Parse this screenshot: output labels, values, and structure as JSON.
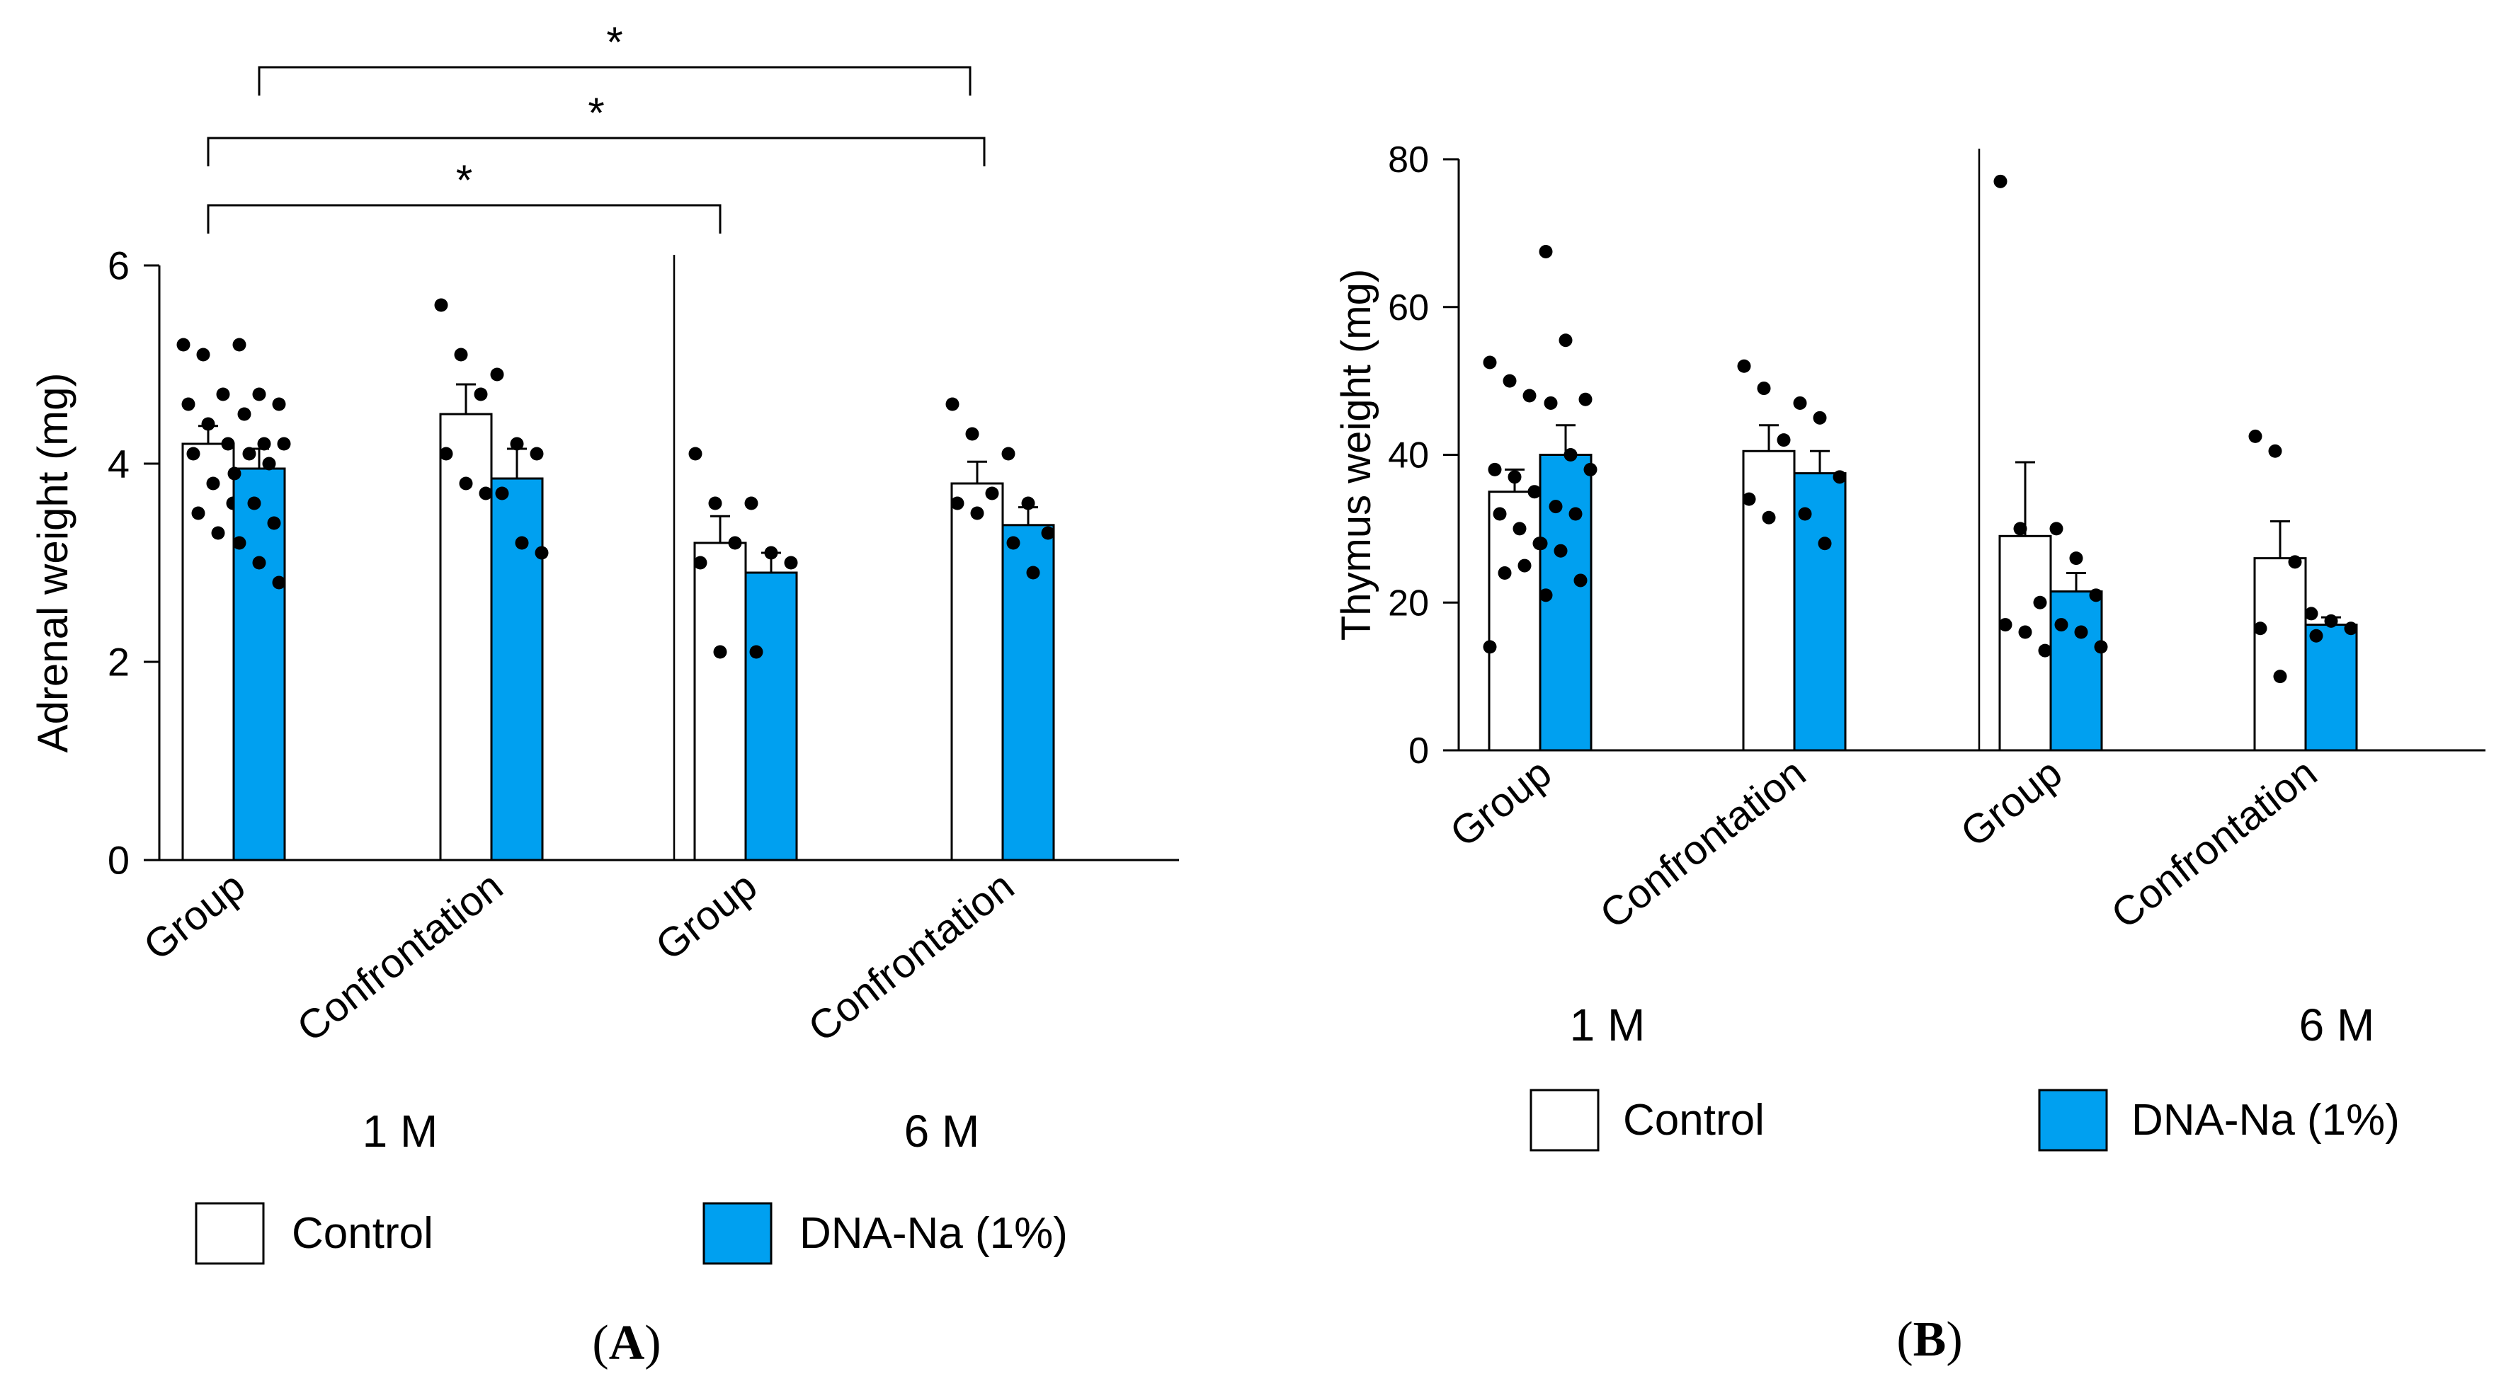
{
  "colors": {
    "control": "#ffffff",
    "dna": "#00a0f0",
    "ink": "#000000"
  },
  "chart_data": [
    {
      "id": "A",
      "type": "bar",
      "panel_label": "A",
      "ylabel": "Adrenal weight (mg)",
      "ylim": [
        0,
        6
      ],
      "yticks": [
        "0",
        "2",
        "4",
        "6"
      ],
      "categories": [
        "Group",
        "Confrontation",
        "Group",
        "Confrontation"
      ],
      "age_labels": [
        "1 M",
        "6 M"
      ],
      "legend": [
        "Control",
        "DNA-Na (1%)"
      ],
      "series": [
        {
          "name": "Control",
          "values": [
            4.2,
            4.5,
            3.2,
            3.8
          ],
          "errors": [
            0.18,
            0.3,
            0.27,
            0.22
          ]
        },
        {
          "name": "DNA-Na (1%)",
          "values": [
            3.95,
            3.85,
            2.9,
            3.38
          ],
          "errors": [
            0.2,
            0.3,
            0.2,
            0.18
          ]
        }
      ],
      "points": [
        [
          [
            5.2,
            5.1,
            4.7,
            4.6,
            4.4,
            4.2,
            4.1,
            3.8,
            3.6,
            3.5,
            3.3
          ],
          [
            5.2,
            4.7,
            4.6,
            4.5,
            4.2,
            4.2,
            4.1,
            4.0,
            3.9,
            3.6,
            3.4,
            3.2,
            3.0,
            2.8
          ]
        ],
        [
          [
            5.6,
            5.1,
            4.7,
            4.1,
            3.8,
            3.7
          ],
          [
            4.9,
            4.2,
            4.1,
            3.7,
            3.2,
            3.1
          ]
        ],
        [
          [
            4.1,
            3.6,
            3.2,
            3.0,
            2.1
          ],
          [
            3.6,
            3.1,
            3.0,
            2.1
          ]
        ],
        [
          [
            4.6,
            4.3,
            3.7,
            3.6,
            3.5
          ],
          [
            4.1,
            3.6,
            3.3,
            3.2,
            2.9
          ]
        ]
      ],
      "significance": [
        {
          "from": [
            0,
            0
          ],
          "to": [
            2,
            0
          ],
          "label": "*"
        },
        {
          "from": [
            0,
            0
          ],
          "to": [
            3,
            0
          ],
          "label": "*"
        },
        {
          "from": [
            0,
            1
          ],
          "to": [
            3,
            0
          ],
          "label": "*"
        }
      ]
    },
    {
      "id": "B",
      "type": "bar",
      "panel_label": "B",
      "ylabel": "Thymus weight (mg)",
      "ylim": [
        0,
        80
      ],
      "yticks": [
        "0",
        "20",
        "40",
        "60",
        "80"
      ],
      "categories": [
        "Group",
        "Confrontation",
        "Group",
        "Confrontation"
      ],
      "age_labels": [
        "1 M",
        "6 M"
      ],
      "legend": [
        "Control",
        "DNA-Na (1%)"
      ],
      "series": [
        {
          "name": "Control",
          "values": [
            35,
            40.5,
            29,
            26
          ],
          "errors": [
            3,
            3.5,
            10,
            5
          ]
        },
        {
          "name": "DNA-Na (1%)",
          "values": [
            40,
            37.5,
            21.5,
            17
          ],
          "errors": [
            4,
            3,
            2.5,
            1
          ]
        }
      ],
      "points": [
        [
          [
            52.5,
            50,
            48,
            38,
            37,
            35,
            32,
            30,
            28,
            24,
            25,
            14
          ],
          [
            67.5,
            55.5,
            47.5,
            47,
            40,
            38,
            33,
            32,
            28,
            27,
            23,
            21
          ]
        ],
        [
          [
            52,
            49,
            42,
            34,
            31.5
          ],
          [
            47,
            45,
            37,
            32,
            28
          ]
        ],
        [
          [
            77,
            30,
            20,
            17,
            16,
            13.5
          ],
          [
            30,
            26,
            21,
            17,
            16,
            14
          ]
        ],
        [
          [
            42.5,
            40.5,
            25.5,
            16.5,
            10
          ],
          [
            18.5,
            17.5,
            16.5,
            15.5
          ]
        ]
      ],
      "significance": []
    }
  ]
}
